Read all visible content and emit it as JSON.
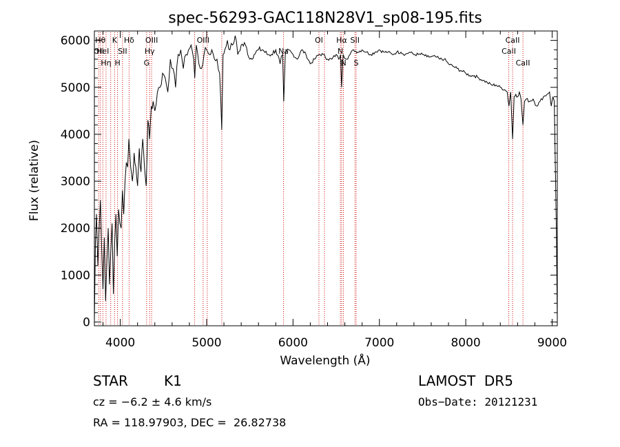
{
  "chart_data": {
    "type": "line",
    "title": "spec-56293-GAC118N28V1_sp08-195.fits",
    "xlabel": "Wavelength (Å)",
    "ylabel": "Flux (relative)",
    "xlim": [
      3700,
      9060
    ],
    "ylim": [
      -80,
      6200
    ],
    "x_ticks": [
      4000,
      5000,
      6000,
      7000,
      8000,
      9000
    ],
    "y_ticks": [
      0,
      1000,
      2000,
      3000,
      4000,
      5000,
      6000
    ],
    "grid": false,
    "line_color": "#000000",
    "marker_line_color": "#cc0000",
    "series": [
      {
        "x": [
          3700,
          3712,
          3725,
          3740,
          3755,
          3770,
          3785,
          3800,
          3815,
          3830,
          3845,
          3860,
          3875,
          3890,
          3905,
          3920,
          3935,
          3950,
          3965,
          3980,
          3995,
          4010,
          4025,
          4040,
          4055,
          4070,
          4085,
          4100,
          4120,
          4140,
          4160,
          4180,
          4200,
          4220,
          4240,
          4260,
          4280,
          4300,
          4320,
          4340,
          4360,
          4380,
          4400,
          4430,
          4460,
          4490,
          4520,
          4550,
          4580,
          4610,
          4640,
          4670,
          4700,
          4730,
          4760,
          4790,
          4820,
          4850,
          4862,
          4880,
          4910,
          4940,
          4970,
          5000,
          5030,
          5060,
          5090,
          5120,
          5150,
          5175,
          5190,
          5210,
          5240,
          5270,
          5300,
          5330,
          5360,
          5400,
          5450,
          5500,
          5550,
          5600,
          5650,
          5700,
          5750,
          5800,
          5850,
          5880,
          5893,
          5910,
          5950,
          6000,
          6050,
          6100,
          6150,
          6200,
          6250,
          6300,
          6350,
          6400,
          6450,
          6500,
          6530,
          6550,
          6563,
          6580,
          6620,
          6660,
          6700,
          6750,
          6800,
          6850,
          6900,
          6950,
          7000,
          7050,
          7100,
          7150,
          7200,
          7250,
          7300,
          7350,
          7400,
          7450,
          7500,
          7550,
          7600,
          7650,
          7700,
          7750,
          7800,
          7850,
          7900,
          7950,
          8000,
          8050,
          8100,
          8150,
          8200,
          8250,
          8300,
          8350,
          8400,
          8450,
          8480,
          8500,
          8520,
          8542,
          8560,
          8580,
          8600,
          8620,
          8640,
          8662,
          8680,
          8700,
          8740,
          8780,
          8820,
          8860,
          8900,
          8940,
          8970,
          8990,
          9010,
          9025,
          9040,
          9050,
          9060
        ],
        "y": [
          0,
          1700,
          2300,
          1200,
          2000,
          2600,
          1500,
          700,
          1800,
          450,
          1300,
          2000,
          800,
          1500,
          2100,
          600,
          1700,
          2300,
          1400,
          2400,
          2100,
          2000,
          2800,
          2300,
          3000,
          3400,
          3300,
          3900,
          3300,
          3000,
          3600,
          3300,
          2900,
          3700,
          3200,
          3900,
          3300,
          2900,
          4300,
          3900,
          4600,
          4700,
          4500,
          4900,
          5000,
          5300,
          5200,
          4900,
          5600,
          5400,
          5000,
          5700,
          5800,
          5400,
          5700,
          5800,
          5900,
          5600,
          5200,
          5900,
          5500,
          5400,
          5700,
          5800,
          5700,
          5800,
          5600,
          5600,
          5300,
          4100,
          5700,
          5800,
          6000,
          5800,
          5900,
          6100,
          5700,
          5900,
          5900,
          5600,
          5700,
          5800,
          5800,
          5700,
          5700,
          5800,
          5500,
          5700,
          4700,
          5700,
          5800,
          5700,
          5600,
          5800,
          5700,
          5500,
          5600,
          5700,
          5700,
          5600,
          5600,
          5700,
          5600,
          5700,
          5000,
          5700,
          5600,
          5700,
          5800,
          5750,
          5800,
          5750,
          5700,
          5750,
          5800,
          5750,
          5750,
          5700,
          5750,
          5750,
          5700,
          5750,
          5700,
          5700,
          5700,
          5650,
          5650,
          5650,
          5600,
          5600,
          5500,
          5450,
          5400,
          5350,
          5300,
          5250,
          5250,
          5200,
          5150,
          5100,
          5050,
          5050,
          5000,
          4950,
          4900,
          4600,
          4900,
          3900,
          4800,
          4850,
          4800,
          4900,
          4750,
          4200,
          4700,
          4750,
          4700,
          4750,
          4600,
          4700,
          4800,
          4850,
          4900,
          4600,
          4800,
          4700,
          3000,
          1900,
          0
        ],
        "color": "#000000"
      }
    ],
    "line_markers": [
      {
        "x": 3750,
        "row": 1,
        "label": "OII"
      },
      {
        "x": 3770,
        "row": 0,
        "label": "Hθ"
      },
      {
        "x": 3798,
        "row": 1,
        "label": "HeI"
      },
      {
        "x": 3835,
        "row": 2,
        "label": "Hη"
      },
      {
        "x": 3889,
        "row": 1,
        "label": ""
      },
      {
        "x": 3934,
        "row": 0,
        "label": "K"
      },
      {
        "x": 3968,
        "row": 2,
        "label": "H"
      },
      {
        "x": 4026,
        "row": 1,
        "label": "SII"
      },
      {
        "x": 4102,
        "row": 0,
        "label": "Hδ"
      },
      {
        "x": 4305,
        "row": 2,
        "label": "G"
      },
      {
        "x": 4340,
        "row": 1,
        "label": "Hγ"
      },
      {
        "x": 4363,
        "row": 0,
        "label": "OIII"
      },
      {
        "x": 4861,
        "row": 1,
        "label": ""
      },
      {
        "x": 4959,
        "row": 0,
        "label": "OIII"
      },
      {
        "x": 5007,
        "row": 1,
        "label": ""
      },
      {
        "x": 5175,
        "row": 2,
        "label": ""
      },
      {
        "x": 5890,
        "row": 1,
        "label": "Na"
      },
      {
        "x": 6300,
        "row": 0,
        "label": "OI"
      },
      {
        "x": 6364,
        "row": 1,
        "label": ""
      },
      {
        "x": 6548,
        "row": 1,
        "label": "N"
      },
      {
        "x": 6563,
        "row": 0,
        "label": "Hα"
      },
      {
        "x": 6584,
        "row": 2,
        "label": "N"
      },
      {
        "x": 6717,
        "row": 0,
        "label": "SII"
      },
      {
        "x": 6731,
        "row": 2,
        "label": "S"
      },
      {
        "x": 8498,
        "row": 1,
        "label": "CaII"
      },
      {
        "x": 8542,
        "row": 0,
        "label": "CaII"
      },
      {
        "x": 8662,
        "row": 2,
        "label": "CaII"
      }
    ]
  },
  "info": {
    "object_type": "STAR",
    "subclass": "K1",
    "survey": "LAMOST  DR5",
    "cz": "cz = −6.2 ± 4.6 km/s",
    "obs_date": "Obs−Date: 20121231",
    "coords": "RA = 118.97903, DEC =  26.82738"
  }
}
